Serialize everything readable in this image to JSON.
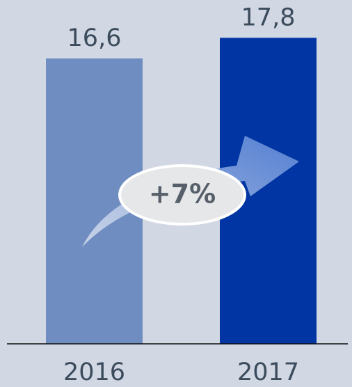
{
  "chart_data": {
    "type": "bar",
    "categories": [
      "2016",
      "2017"
    ],
    "values": [
      16.6,
      17.8
    ],
    "value_labels": [
      "16,6",
      "17,8"
    ],
    "colors": [
      "#6f8dc0",
      "#0035a3"
    ],
    "annotation": "+7%"
  }
}
